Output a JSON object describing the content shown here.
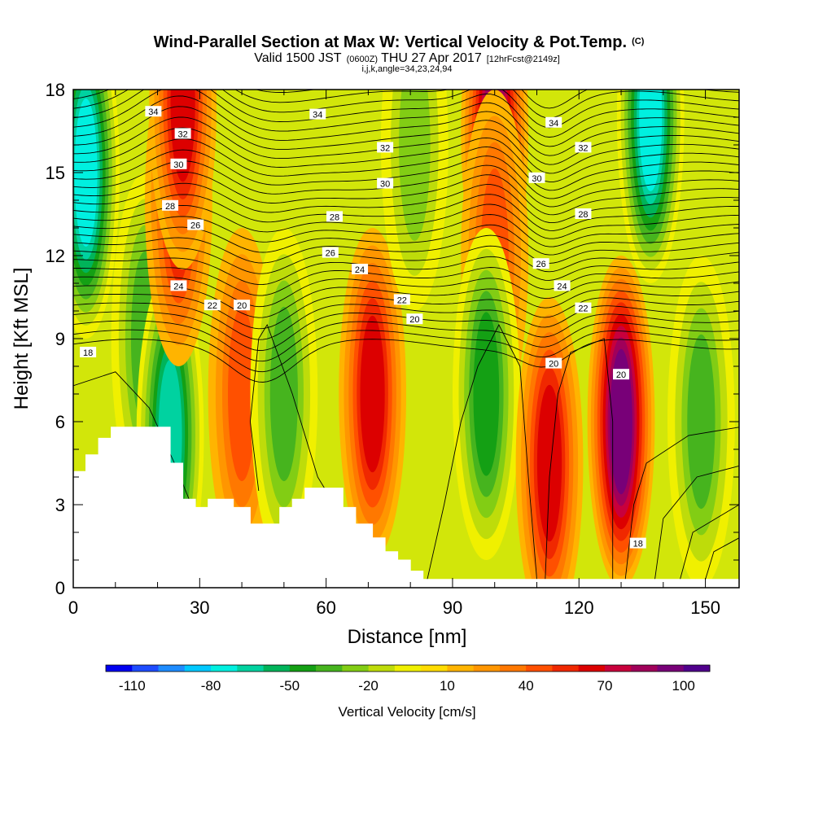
{
  "chart_data": {
    "type": "heatmap",
    "title": "Wind-Parallel Section at Max W: Vertical Velocity & Pot.Temp.",
    "title_mark": "(C)",
    "subtitle_valid": "Valid 1500 JST",
    "subtitle_utc": "(0600Z)",
    "subtitle_date": "THU 27 Apr 2017",
    "subtitle_fcst": "[12hrFcst@2149z]",
    "subtitle_indices": "i,j,k,angle=34,23,24,94",
    "xlabel": "Distance [nm]",
    "ylabel": "Height [Kft MSL]",
    "xlim": [
      0,
      158
    ],
    "ylim": [
      0,
      18
    ],
    "x_ticks": [
      "0",
      "30",
      "60",
      "90",
      "120",
      "150"
    ],
    "y_ticks": [
      "0",
      "3",
      "6",
      "9",
      "12",
      "15",
      "18"
    ],
    "colorbar_label": "Vertical Velocity [cm/s]",
    "colorbar_ticks": [
      "-110",
      "-80",
      "-50",
      "-20",
      "10",
      "40",
      "70",
      "100"
    ],
    "colorbar_colors": [
      "#0000f0",
      "#1e4cff",
      "#1e8cff",
      "#00c8ff",
      "#00f0e0",
      "#00d2a0",
      "#00b45a",
      "#14a014",
      "#46b41e",
      "#82cd14",
      "#bedc0a",
      "#f0f000",
      "#ffdc00",
      "#ffb400",
      "#ff9600",
      "#ff7800",
      "#ff5000",
      "#f02800",
      "#dc0000",
      "#c8003c",
      "#a0005a",
      "#780078",
      "#50008c"
    ],
    "vertical_velocity_cores": [
      {
        "x": 3,
        "y": 15,
        "w": -85
      },
      {
        "x": 17,
        "y": 9,
        "w": -40
      },
      {
        "x": 23,
        "y": 5.5,
        "w": -75
      },
      {
        "x": 25,
        "y": 14,
        "w": 55
      },
      {
        "x": 26,
        "y": 17.5,
        "w": 65
      },
      {
        "x": 40,
        "y": 7,
        "w": 45
      },
      {
        "x": 50,
        "y": 7,
        "w": -40
      },
      {
        "x": 71,
        "y": 7,
        "w": 60
      },
      {
        "x": 81,
        "y": 16,
        "w": -35
      },
      {
        "x": 100,
        "y": 16.5,
        "w": 85
      },
      {
        "x": 100,
        "y": 12,
        "w": 40
      },
      {
        "x": 98,
        "y": 7,
        "w": -55
      },
      {
        "x": 113,
        "y": 4.5,
        "w": 60
      },
      {
        "x": 130,
        "y": 6,
        "w": 90
      },
      {
        "x": 137,
        "y": 17,
        "w": -85
      },
      {
        "x": 149,
        "y": 6,
        "w": -40
      }
    ],
    "terrain_height_kft": [
      [
        0,
        4.2
      ],
      [
        3,
        4.2
      ],
      [
        3,
        4.8
      ],
      [
        6,
        4.8
      ],
      [
        6,
        5.4
      ],
      [
        9,
        5.4
      ],
      [
        9,
        5.8
      ],
      [
        23,
        5.8
      ],
      [
        23,
        4.5
      ],
      [
        26,
        4.5
      ],
      [
        26,
        3.2
      ],
      [
        29,
        3.2
      ],
      [
        29,
        2.9
      ],
      [
        32,
        2.9
      ],
      [
        32,
        3.2
      ],
      [
        38,
        3.2
      ],
      [
        38,
        2.9
      ],
      [
        42,
        2.9
      ],
      [
        42,
        2.3
      ],
      [
        49,
        2.3
      ],
      [
        49,
        2.9
      ],
      [
        52,
        2.9
      ],
      [
        52,
        3.2
      ],
      [
        55,
        3.2
      ],
      [
        55,
        3.6
      ],
      [
        64,
        3.6
      ],
      [
        64,
        2.9
      ],
      [
        67,
        2.9
      ],
      [
        67,
        2.3
      ],
      [
        71,
        2.3
      ],
      [
        71,
        1.8
      ],
      [
        74,
        1.8
      ],
      [
        74,
        1.3
      ],
      [
        77,
        1.3
      ],
      [
        77,
        1.0
      ],
      [
        80,
        1.0
      ],
      [
        80,
        0.6
      ],
      [
        83,
        0.6
      ],
      [
        83,
        0.3
      ],
      [
        158,
        0.3
      ]
    ],
    "theta_contour_levels": [
      18,
      20,
      22,
      24,
      26,
      28,
      30,
      32,
      34
    ],
    "theta_contour_labels": [
      {
        "text": "34",
        "x": 19,
        "y": 17.2
      },
      {
        "text": "32",
        "x": 26,
        "y": 16.4
      },
      {
        "text": "30",
        "x": 25,
        "y": 15.3
      },
      {
        "text": "28",
        "x": 23,
        "y": 13.8
      },
      {
        "text": "26",
        "x": 29,
        "y": 13.1
      },
      {
        "text": "24",
        "x": 25,
        "y": 10.9
      },
      {
        "text": "22",
        "x": 33,
        "y": 10.2
      },
      {
        "text": "20",
        "x": 40,
        "y": 10.2
      },
      {
        "text": "18",
        "x": 3.5,
        "y": 8.5
      },
      {
        "text": "34",
        "x": 58,
        "y": 17.1
      },
      {
        "text": "32",
        "x": 74,
        "y": 15.9
      },
      {
        "text": "30",
        "x": 74,
        "y": 14.6
      },
      {
        "text": "28",
        "x": 62,
        "y": 13.4
      },
      {
        "text": "26",
        "x": 61,
        "y": 12.1
      },
      {
        "text": "24",
        "x": 68,
        "y": 11.5
      },
      {
        "text": "22",
        "x": 78,
        "y": 10.4
      },
      {
        "text": "20",
        "x": 81,
        "y": 9.7
      },
      {
        "text": "34",
        "x": 114,
        "y": 16.8
      },
      {
        "text": "32",
        "x": 121,
        "y": 15.9
      },
      {
        "text": "30",
        "x": 110,
        "y": 14.8
      },
      {
        "text": "28",
        "x": 121,
        "y": 13.5
      },
      {
        "text": "26",
        "x": 111,
        "y": 11.7
      },
      {
        "text": "24",
        "x": 116,
        "y": 10.9
      },
      {
        "text": "22",
        "x": 121,
        "y": 10.1
      },
      {
        "text": "20",
        "x": 114,
        "y": 8.1
      },
      {
        "text": "20",
        "x": 130,
        "y": 7.7
      },
      {
        "text": "18",
        "x": 134,
        "y": 1.6
      }
    ]
  }
}
